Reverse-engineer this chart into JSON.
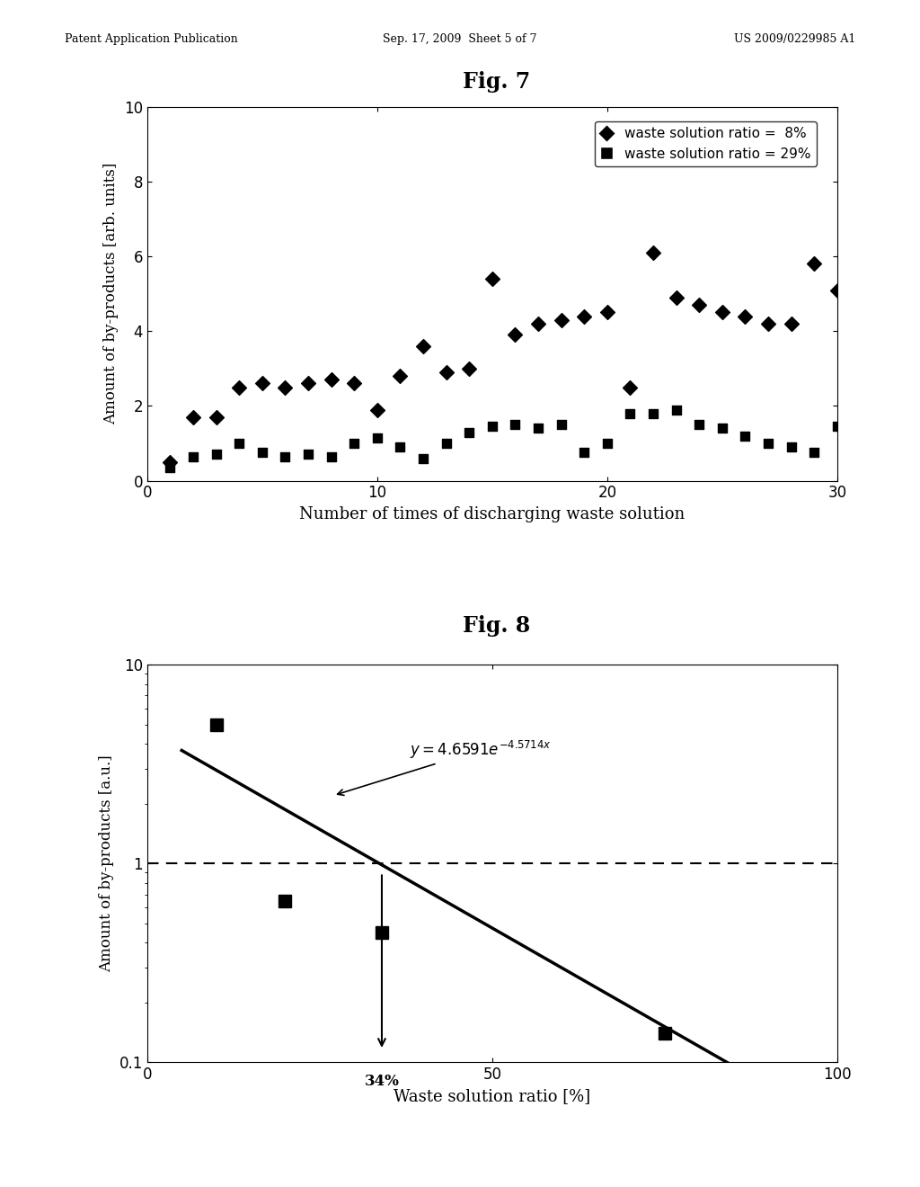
{
  "header_left": "Patent Application Publication",
  "header_center": "Sep. 17, 2009  Sheet 5 of 7",
  "header_right": "US 2009/0229985 A1",
  "fig7": {
    "title": "Fig. 7",
    "xlabel": "Number of times of discharging waste solution",
    "ylabel": "Amount of by-products [arb. units]",
    "xlim": [
      0,
      30
    ],
    "ylim": [
      0,
      10
    ],
    "xticks": [
      0,
      10,
      20,
      30
    ],
    "yticks": [
      0,
      2,
      4,
      6,
      8,
      10
    ],
    "legend1": "waste solution ratio =  8%",
    "legend2": "waste solution ratio = 29%",
    "series1_x": [
      1,
      2,
      3,
      4,
      5,
      6,
      7,
      8,
      9,
      10,
      11,
      12,
      13,
      14,
      15,
      16,
      17,
      18,
      19,
      20,
      21,
      22,
      23,
      24,
      25,
      26,
      27,
      28,
      29,
      30
    ],
    "series1_y": [
      0.5,
      1.7,
      1.7,
      2.5,
      2.6,
      2.5,
      2.6,
      2.7,
      2.6,
      1.9,
      2.8,
      3.6,
      2.9,
      3.0,
      5.4,
      3.9,
      4.2,
      4.3,
      4.4,
      4.5,
      2.5,
      6.1,
      4.9,
      4.7,
      4.5,
      4.4,
      4.2,
      4.2,
      5.8,
      5.1
    ],
    "series2_x": [
      1,
      2,
      3,
      4,
      5,
      6,
      7,
      8,
      9,
      10,
      11,
      12,
      13,
      14,
      15,
      16,
      17,
      18,
      19,
      20,
      21,
      22,
      23,
      24,
      25,
      26,
      27,
      28,
      29,
      30
    ],
    "series2_y": [
      0.35,
      0.65,
      0.7,
      1.0,
      0.75,
      0.65,
      0.7,
      0.65,
      1.0,
      1.15,
      0.9,
      0.6,
      1.0,
      1.3,
      1.45,
      1.5,
      1.4,
      1.5,
      0.75,
      1.0,
      1.8,
      1.8,
      1.9,
      1.5,
      1.4,
      1.2,
      1.0,
      0.9,
      0.75,
      1.45
    ]
  },
  "fig8": {
    "title": "Fig. 8",
    "xlabel": "Waste solution ratio [%]",
    "ylabel": "Amount of by-products [a.u.]",
    "xlim": [
      0,
      100
    ],
    "ylim_log": [
      0.1,
      10
    ],
    "xticks": [
      0,
      50,
      100
    ],
    "ytick_vals": [
      0.1,
      1,
      10
    ],
    "ytick_labels": [
      "0.1",
      "1",
      "10"
    ],
    "annotation_34": "34%",
    "dashed_y": 1.0,
    "data_x": [
      10,
      20,
      34,
      75
    ],
    "data_y": [
      5.0,
      0.65,
      0.45,
      0.14
    ],
    "fit_x_start": 5,
    "fit_x_end": 88,
    "a": 4.6591,
    "b_over100": 0.045714
  },
  "bg_color": "#ffffff",
  "text_color": "#000000"
}
